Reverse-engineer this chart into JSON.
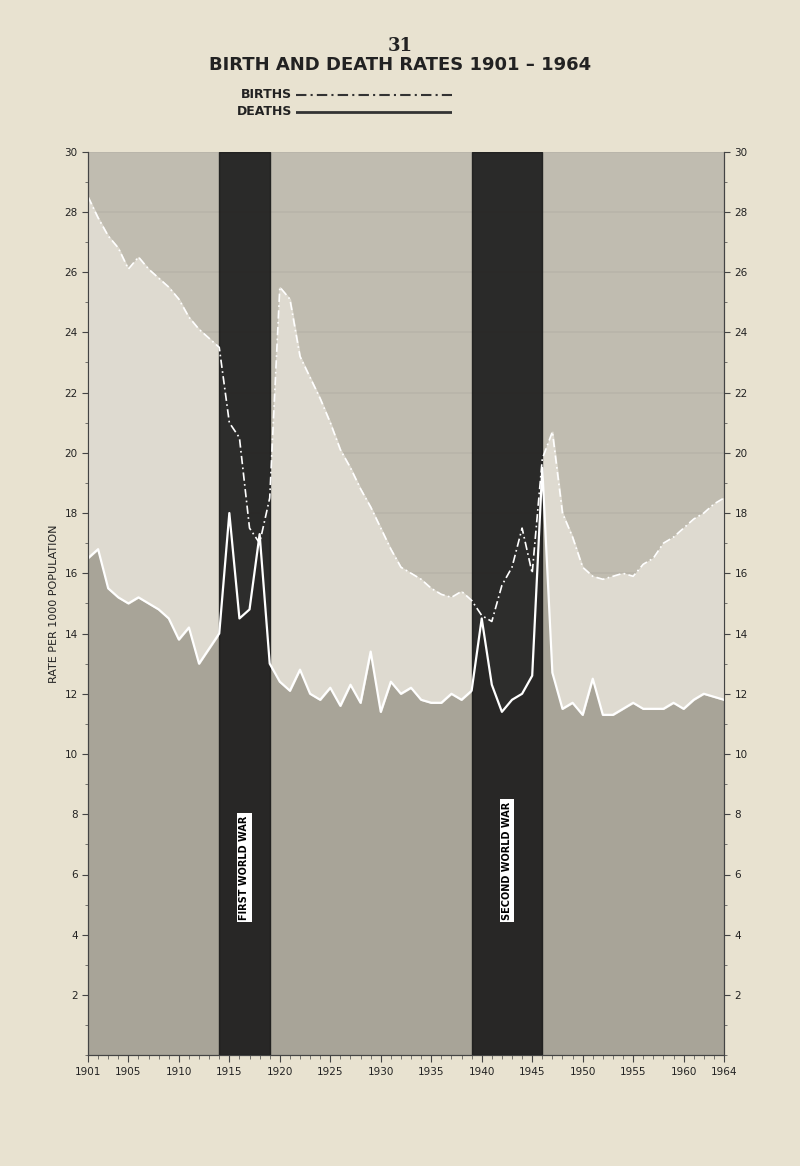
{
  "title": "BIRTH AND DEATH RATES 1901 – 1964",
  "page_number": "31",
  "ylabel": "RATE PER 1000 POPULATION",
  "legend_births": "BIRTHS",
  "legend_deaths": "DEATHS",
  "ylim": [
    0,
    30
  ],
  "yticks": [
    2,
    4,
    6,
    8,
    10,
    12,
    14,
    16,
    18,
    20,
    22,
    24,
    26,
    28,
    30
  ],
  "xlim": [
    1901,
    1964
  ],
  "xticks": [
    1901,
    1905,
    1910,
    1915,
    1920,
    1925,
    1930,
    1935,
    1940,
    1945,
    1950,
    1955,
    1960,
    1964
  ],
  "ww1_start": 1914,
  "ww1_end": 1919,
  "ww2_start": 1939,
  "ww2_end": 1946,
  "ww1_label": "FIRST WORLD WAR",
  "ww2_label": "SECOND WORLD WAR",
  "bg_color": "#e8e2d0",
  "chart_bg": "#c0bcb0",
  "death_fill_color": "#a8a498",
  "birth_fill_color": "#dedad0",
  "war_band_color": "#1a1a1a",
  "line_color": "#ffffff",
  "years": [
    1901,
    1902,
    1903,
    1904,
    1905,
    1906,
    1907,
    1908,
    1909,
    1910,
    1911,
    1912,
    1913,
    1914,
    1915,
    1916,
    1917,
    1918,
    1919,
    1920,
    1921,
    1922,
    1923,
    1924,
    1925,
    1926,
    1927,
    1928,
    1929,
    1930,
    1931,
    1932,
    1933,
    1934,
    1935,
    1936,
    1937,
    1938,
    1939,
    1940,
    1941,
    1942,
    1943,
    1944,
    1945,
    1946,
    1947,
    1948,
    1949,
    1950,
    1951,
    1952,
    1953,
    1954,
    1955,
    1956,
    1957,
    1958,
    1959,
    1960,
    1961,
    1962,
    1963,
    1964
  ],
  "birth_rates": [
    28.5,
    27.8,
    27.2,
    26.8,
    26.1,
    26.5,
    26.1,
    25.8,
    25.5,
    25.1,
    24.5,
    24.1,
    23.8,
    23.5,
    21.0,
    20.5,
    17.5,
    17.0,
    18.5,
    25.5,
    25.1,
    23.2,
    22.5,
    21.8,
    21.0,
    20.1,
    19.5,
    18.8,
    18.2,
    17.5,
    16.8,
    16.2,
    16.0,
    15.8,
    15.5,
    15.3,
    15.2,
    15.4,
    15.1,
    14.6,
    14.4,
    15.6,
    16.2,
    17.5,
    16.0,
    19.8,
    20.7,
    18.0,
    17.2,
    16.2,
    15.9,
    15.8,
    15.9,
    16.0,
    15.9,
    16.3,
    16.5,
    17.0,
    17.2,
    17.5,
    17.8,
    18.0,
    18.3,
    18.5
  ],
  "death_rates": [
    16.5,
    16.8,
    15.5,
    15.2,
    15.0,
    15.2,
    15.0,
    14.8,
    14.5,
    13.8,
    14.2,
    13.0,
    13.5,
    14.0,
    18.0,
    14.5,
    14.8,
    17.3,
    13.0,
    12.4,
    12.1,
    12.8,
    12.0,
    11.8,
    12.2,
    11.6,
    12.3,
    11.7,
    13.4,
    11.4,
    12.4,
    12.0,
    12.2,
    11.8,
    11.7,
    11.7,
    12.0,
    11.8,
    12.1,
    14.5,
    12.3,
    11.4,
    11.8,
    12.0,
    12.6,
    19.5,
    12.7,
    11.5,
    11.7,
    11.3,
    12.5,
    11.3,
    11.3,
    11.5,
    11.7,
    11.5,
    11.5,
    11.5,
    11.7,
    11.5,
    11.8,
    12.0,
    11.9,
    11.8
  ]
}
